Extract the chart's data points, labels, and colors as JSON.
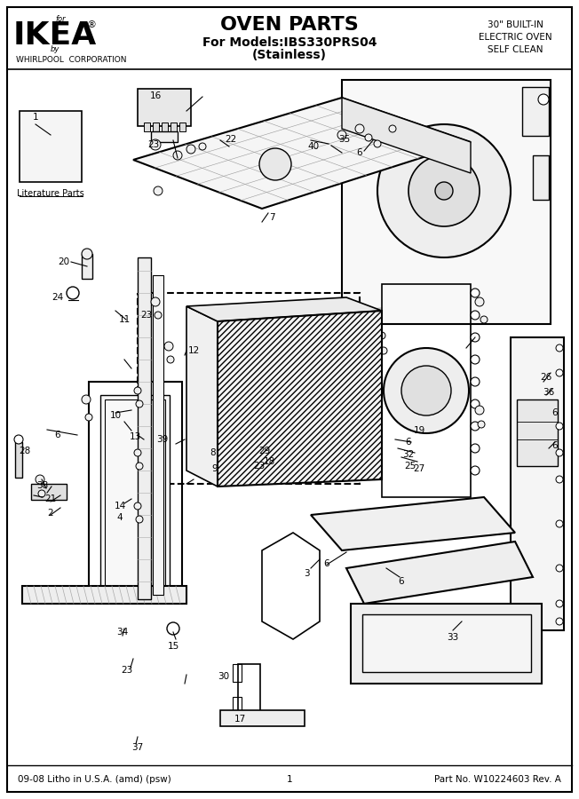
{
  "title": "OVEN PARTS",
  "subtitle1": "For Models:IBS330PRS04",
  "subtitle2": "(Stainless)",
  "brand_for": "for",
  "brand_name": "IKEA",
  "brand_reg": "®",
  "brand_by": "by",
  "brand_corp": "WHIRLPOOL  CORPORATION",
  "top_right_line1": "30\" BUILT-IN",
  "top_right_line2": "ELECTRIC OVEN",
  "top_right_line3": "SELF CLEAN",
  "footer_left": "09-08 Litho in U.S.A. (amd) (psw)",
  "footer_center": "1",
  "footer_right": "Part No. W10224603 Rev. A",
  "bg_color": "#ffffff",
  "border_color": "#000000",
  "text_color": "#000000",
  "fig_width": 6.52,
  "fig_height": 9.0,
  "dpi": 100
}
